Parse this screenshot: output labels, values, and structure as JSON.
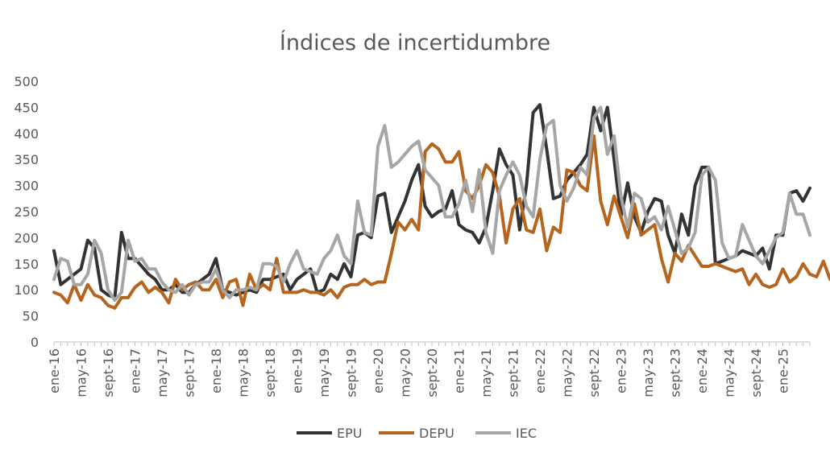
{
  "chart_data": {
    "type": "line",
    "title": "Índices de incertidumbre",
    "xlabel": "",
    "ylabel": "",
    "ylim": [
      0,
      500
    ],
    "yticks": [
      0,
      50,
      100,
      150,
      200,
      250,
      300,
      350,
      400,
      450,
      500
    ],
    "grid": false,
    "legend_position": "bottom",
    "x_tick_labels": [
      "ene-16",
      "may-16",
      "sept-16",
      "ene-17",
      "may-17",
      "sept-17",
      "ene-18",
      "may-18",
      "sept-18",
      "ene-19",
      "may-19",
      "sept-19",
      "ene-20",
      "may-20",
      "sept-20",
      "ene-21",
      "may-21",
      "sept-21",
      "ene-22",
      "may-22",
      "sept-22",
      "ene-23",
      "may-23",
      "sept-23",
      "ene-24",
      "may-24",
      "sept-24",
      "ene-25"
    ],
    "series": [
      {
        "name": "EPU",
        "color": "#333333",
        "values": [
          175,
          110,
          120,
          130,
          140,
          195,
          180,
          100,
          90,
          85,
          210,
          160,
          160,
          145,
          130,
          120,
          100,
          100,
          110,
          95,
          95,
          110,
          120,
          130,
          160,
          100,
          95,
          90,
          95,
          100,
          95,
          120,
          120,
          125,
          130,
          100,
          120,
          130,
          140,
          95,
          100,
          130,
          120,
          150,
          125,
          205,
          210,
          200,
          280,
          285,
          210,
          240,
          270,
          310,
          340,
          260,
          240,
          250,
          255,
          290,
          225,
          215,
          210,
          190,
          220,
          290,
          370,
          340,
          320,
          215,
          300,
          440,
          455,
          370,
          275,
          280,
          310,
          325,
          340,
          360,
          450,
          405,
          450,
          350,
          240,
          305,
          240,
          210,
          250,
          275,
          270,
          205,
          170,
          245,
          205,
          300,
          335,
          335,
          150,
          155,
          160,
          165,
          175,
          170,
          165,
          180,
          140,
          205,
          205,
          285,
          290,
          270,
          295
        ]
      },
      {
        "name": "DEPU",
        "color": "#B5651D",
        "values": [
          95,
          90,
          75,
          110,
          80,
          110,
          90,
          85,
          70,
          65,
          85,
          85,
          105,
          115,
          95,
          105,
          95,
          75,
          120,
          100,
          110,
          115,
          100,
          100,
          120,
          85,
          115,
          120,
          70,
          130,
          100,
          110,
          100,
          160,
          95,
          95,
          95,
          100,
          95,
          95,
          90,
          100,
          85,
          105,
          110,
          110,
          120,
          110,
          115,
          115,
          170,
          230,
          215,
          235,
          215,
          365,
          380,
          370,
          345,
          345,
          365,
          290,
          275,
          300,
          340,
          325,
          280,
          190,
          255,
          275,
          215,
          210,
          255,
          175,
          220,
          210,
          330,
          325,
          300,
          290,
          395,
          270,
          225,
          280,
          240,
          200,
          265,
          205,
          215,
          225,
          160,
          115,
          170,
          155,
          185,
          165,
          145,
          145,
          150,
          145,
          140,
          135,
          140,
          110,
          130,
          110,
          105,
          110,
          140,
          115,
          125,
          150,
          130,
          125,
          155,
          120
        ]
      },
      {
        "name": "IEC",
        "color": "#A6A6A6",
        "values": [
          120,
          160,
          155,
          110,
          110,
          130,
          195,
          170,
          100,
          80,
          95,
          195,
          155,
          160,
          140,
          140,
          115,
          100,
          95,
          110,
          90,
          110,
          115,
          115,
          140,
          100,
          85,
          100,
          100,
          105,
          100,
          150,
          150,
          145,
          115,
          150,
          175,
          140,
          135,
          130,
          160,
          175,
          205,
          165,
          150,
          270,
          210,
          205,
          375,
          415,
          335,
          345,
          360,
          375,
          385,
          330,
          315,
          300,
          240,
          240,
          265,
          310,
          250,
          330,
          210,
          170,
          290,
          320,
          345,
          320,
          260,
          240,
          350,
          415,
          425,
          300,
          270,
          295,
          335,
          320,
          430,
          450,
          360,
          395,
          280,
          220,
          285,
          275,
          230,
          240,
          215,
          260,
          215,
          170,
          180,
          210,
          320,
          335,
          310,
          190,
          160,
          165,
          225,
          195,
          165,
          150,
          175,
          200,
          210,
          285,
          245,
          245,
          205
        ]
      }
    ]
  }
}
